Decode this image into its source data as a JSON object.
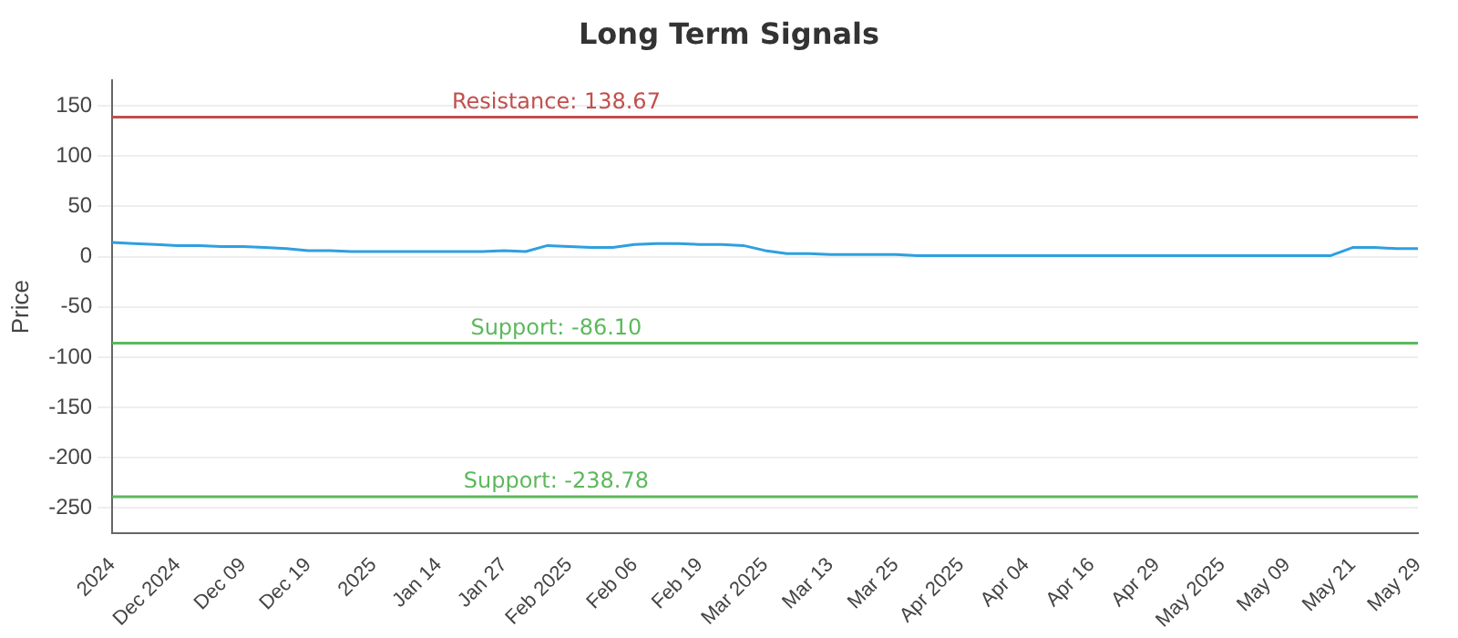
{
  "chart_data": {
    "type": "line",
    "title": "Long Term Signals",
    "ylabel": "Price",
    "categories": [
      "2024",
      null,
      null,
      "Dec 2024",
      null,
      null,
      "Dec 09",
      null,
      null,
      "Dec 19",
      null,
      null,
      "2025",
      null,
      null,
      "Jan 14",
      null,
      null,
      "Jan 27",
      null,
      null,
      "Feb 2025",
      null,
      null,
      "Feb 06",
      null,
      null,
      "Feb 19",
      null,
      null,
      "Mar 2025",
      null,
      null,
      "Mar 13",
      null,
      null,
      "Mar 25",
      null,
      null,
      "Apr 2025",
      null,
      null,
      "Apr 04",
      null,
      null,
      "Apr 16",
      null,
      null,
      "Apr 29",
      null,
      null,
      "May 2025",
      null,
      null,
      "May 09",
      null,
      null,
      "May 21",
      null,
      null,
      "May 29"
    ],
    "series": [
      {
        "color": "#2f9fe0",
        "values": [
          14,
          13,
          12,
          11,
          11,
          10,
          10,
          9,
          8,
          6,
          6,
          5,
          5,
          5,
          5,
          5,
          5,
          5,
          6,
          5,
          11,
          10,
          9,
          9,
          12,
          13,
          13,
          12,
          12,
          11,
          6,
          3,
          3,
          2,
          2,
          2,
          2,
          1,
          1,
          1,
          1,
          1,
          1,
          1,
          1,
          1,
          1,
          1,
          1,
          1,
          1,
          1,
          1,
          1,
          1,
          1,
          1,
          9,
          9,
          8,
          8
        ]
      }
    ],
    "ylim": [
      -275,
      175
    ],
    "yticks": [
      -250,
      -200,
      -150,
      -100,
      -50,
      0,
      50,
      100,
      150
    ],
    "grid": "y",
    "marker": "none",
    "line_style": "solid",
    "legend": false,
    "ref_lines": [
      {
        "axis": "y",
        "value": 138.67,
        "label": "Resistance: 138.67",
        "color": "#c0504d"
      },
      {
        "axis": "y",
        "value": -86.1,
        "label": "Support: -86.10",
        "color": "#5cb85c"
      },
      {
        "axis": "y",
        "value": -238.78,
        "label": "Support: -238.78",
        "color": "#5cb85c"
      }
    ]
  }
}
